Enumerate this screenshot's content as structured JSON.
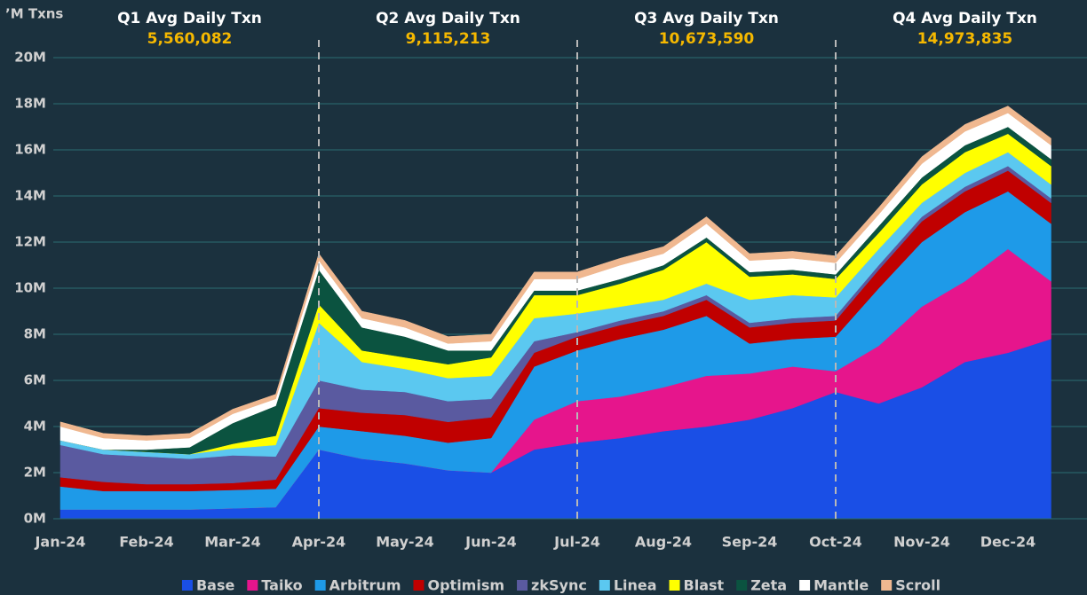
{
  "chart_data": {
    "type": "stacked_area",
    "y_label": "’M Txns",
    "categories": [
      "Jan-24",
      null,
      "Feb-24",
      null,
      "Mar-24",
      null,
      "Apr-24",
      null,
      "May-24",
      null,
      "Jun-24",
      null,
      "Jul-24",
      null,
      "Aug-24",
      null,
      "Sep-24",
      null,
      "Oct-24",
      null,
      "Nov-24",
      null,
      "Dec-24",
      null
    ],
    "ylim": [
      0,
      21
    ],
    "yticks": [
      {
        "value": 0,
        "label": "0M"
      },
      {
        "value": 2,
        "label": "2M"
      },
      {
        "value": 4,
        "label": "4M"
      },
      {
        "value": 6,
        "label": "6M"
      },
      {
        "value": 8,
        "label": "8M"
      },
      {
        "value": 10,
        "label": "10M"
      },
      {
        "value": 12,
        "label": "12M"
      },
      {
        "value": 14,
        "label": "14M"
      },
      {
        "value": 16,
        "label": "16M"
      },
      {
        "value": 18,
        "label": "18M"
      },
      {
        "value": 20,
        "label": "20M"
      }
    ],
    "grid": true,
    "legend": "bottom",
    "annotations": [
      {
        "text": "Q1 Avg Daily Txn",
        "value": "5,560,082"
      },
      {
        "text": "Q2 Avg Daily Txn",
        "value": "9,115,213"
      },
      {
        "text": "Q3 Avg Daily Txn",
        "value": "10,673,590"
      },
      {
        "text": "Q4 Avg Daily Txn",
        "value": "14,973,835"
      }
    ],
    "series": [
      {
        "name": "Base",
        "color": "#1a4fe6",
        "values": [
          0.4,
          0.4,
          0.4,
          0.4,
          0.45,
          0.5,
          3.0,
          2.6,
          2.4,
          2.1,
          2.0,
          3.0,
          3.3,
          3.5,
          3.8,
          4.0,
          4.3,
          4.8,
          5.5,
          5.0,
          5.7,
          6.8,
          7.2,
          7.8
        ]
      },
      {
        "name": "Taiko",
        "color": "#e6158c",
        "values": [
          0,
          0,
          0,
          0,
          0,
          0,
          0,
          0,
          0,
          0,
          0,
          1.3,
          1.8,
          1.8,
          1.9,
          2.2,
          2.0,
          1.8,
          0.9,
          2.5,
          3.5,
          3.5,
          4.5,
          2.5
        ]
      },
      {
        "name": "Arbitrum",
        "color": "#1e9ae8",
        "values": [
          1.0,
          0.8,
          0.8,
          0.8,
          0.8,
          0.8,
          1.0,
          1.2,
          1.2,
          1.2,
          1.5,
          2.3,
          2.2,
          2.5,
          2.5,
          2.6,
          1.3,
          1.2,
          1.5,
          2.5,
          2.8,
          3.0,
          2.5,
          2.5
        ]
      },
      {
        "name": "Optimism",
        "color": "#c00000",
        "values": [
          0.4,
          0.4,
          0.3,
          0.3,
          0.3,
          0.4,
          0.8,
          0.8,
          0.9,
          0.9,
          0.9,
          0.6,
          0.6,
          0.6,
          0.6,
          0.7,
          0.7,
          0.7,
          0.7,
          0.8,
          0.9,
          0.9,
          0.9,
          0.9
        ]
      },
      {
        "name": "zkSync",
        "color": "#5a5aa0",
        "values": [
          1.4,
          1.2,
          1.2,
          1.1,
          1.2,
          1.0,
          1.2,
          1.0,
          1.0,
          0.9,
          0.8,
          0.5,
          0.2,
          0.2,
          0.2,
          0.2,
          0.2,
          0.2,
          0.2,
          0.2,
          0.2,
          0.2,
          0.2,
          0.2
        ]
      },
      {
        "name": "Linea",
        "color": "#5bc8f0",
        "values": [
          0.2,
          0.2,
          0.2,
          0.2,
          0.3,
          0.5,
          2.5,
          1.2,
          1.0,
          1.0,
          1.0,
          1.0,
          0.8,
          0.6,
          0.5,
          0.5,
          1.0,
          1.0,
          0.8,
          0.7,
          0.6,
          0.6,
          0.6,
          0.6
        ]
      },
      {
        "name": "Blast",
        "color": "#ffff00",
        "values": [
          0,
          0,
          0,
          0,
          0.2,
          0.4,
          0.8,
          0.5,
          0.5,
          0.6,
          0.8,
          1.0,
          0.8,
          1.0,
          1.3,
          1.8,
          1.0,
          0.9,
          0.8,
          0.7,
          0.8,
          0.9,
          0.8,
          0.8
        ]
      },
      {
        "name": "Zeta",
        "color": "#0b5340",
        "values": [
          0,
          0,
          0.1,
          0.3,
          0.9,
          1.3,
          1.5,
          1.0,
          0.9,
          0.6,
          0.3,
          0.2,
          0.2,
          0.2,
          0.2,
          0.2,
          0.2,
          0.2,
          0.2,
          0.3,
          0.3,
          0.3,
          0.3,
          0.3
        ]
      },
      {
        "name": "Mantle",
        "color": "#ffffff",
        "values": [
          0.6,
          0.5,
          0.4,
          0.4,
          0.4,
          0.3,
          0.4,
          0.4,
          0.4,
          0.3,
          0.4,
          0.5,
          0.5,
          0.6,
          0.5,
          0.6,
          0.5,
          0.5,
          0.5,
          0.5,
          0.6,
          0.6,
          0.6,
          0.6
        ]
      },
      {
        "name": "Scroll",
        "color": "#f0b890",
        "values": [
          0.2,
          0.2,
          0.2,
          0.2,
          0.2,
          0.2,
          0.3,
          0.3,
          0.3,
          0.3,
          0.3,
          0.3,
          0.3,
          0.3,
          0.3,
          0.3,
          0.3,
          0.3,
          0.3,
          0.3,
          0.3,
          0.3,
          0.3,
          0.3
        ]
      }
    ]
  }
}
